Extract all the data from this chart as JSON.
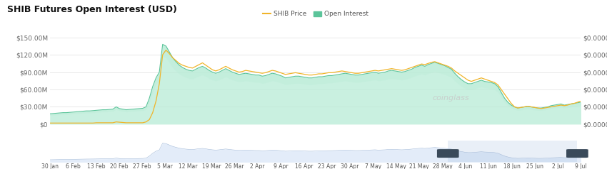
{
  "title": "SHIB Futures Open Interest (USD)",
  "title_fontsize": 9,
  "background_color": "#ffffff",
  "plot_bg_color": "#ffffff",
  "grid_color": "#e8e8e8",
  "legend_items": [
    "SHIB Price",
    "Open Interest"
  ],
  "legend_colors": [
    "#f0b429",
    "#5bc49a"
  ],
  "x_labels": [
    "30 Jan",
    "6 Feb",
    "13 Feb",
    "20 Feb",
    "27 Feb",
    "5 Mar",
    "12 Mar",
    "19 Mar",
    "26 Mar",
    "2 Apr",
    "9 Apr",
    "16 Apr",
    "23 Apr",
    "30 Apr",
    "7 May",
    "14 May",
    "21 May",
    "28 May",
    "4 Jun",
    "11 Jun",
    "18 Jun",
    "25 Jun",
    "2 Jul",
    "9 Jul"
  ],
  "y_left_labels": [
    "$0",
    "$30.00M",
    "$60.00M",
    "$90.00M",
    "$120.00M",
    "$150.00M"
  ],
  "y_left_values": [
    0,
    30,
    60,
    90,
    120,
    150
  ],
  "y_right_labels": [
    "$0.0000",
    "$0.0000",
    "$0.0000",
    "$0.0000",
    "$0.0000",
    "$0.0000"
  ],
  "ylim": [
    0,
    162
  ],
  "open_interest_line_color": "#5bc49a",
  "open_interest_fill_color": "#b8ecd6",
  "shib_price_color": "#f0b429",
  "watermark": "coinglass",
  "watermark_color": "#c8c8c8",
  "mini_line_color": "#a0b8d8",
  "mini_fill_color": "#dce8f8"
}
